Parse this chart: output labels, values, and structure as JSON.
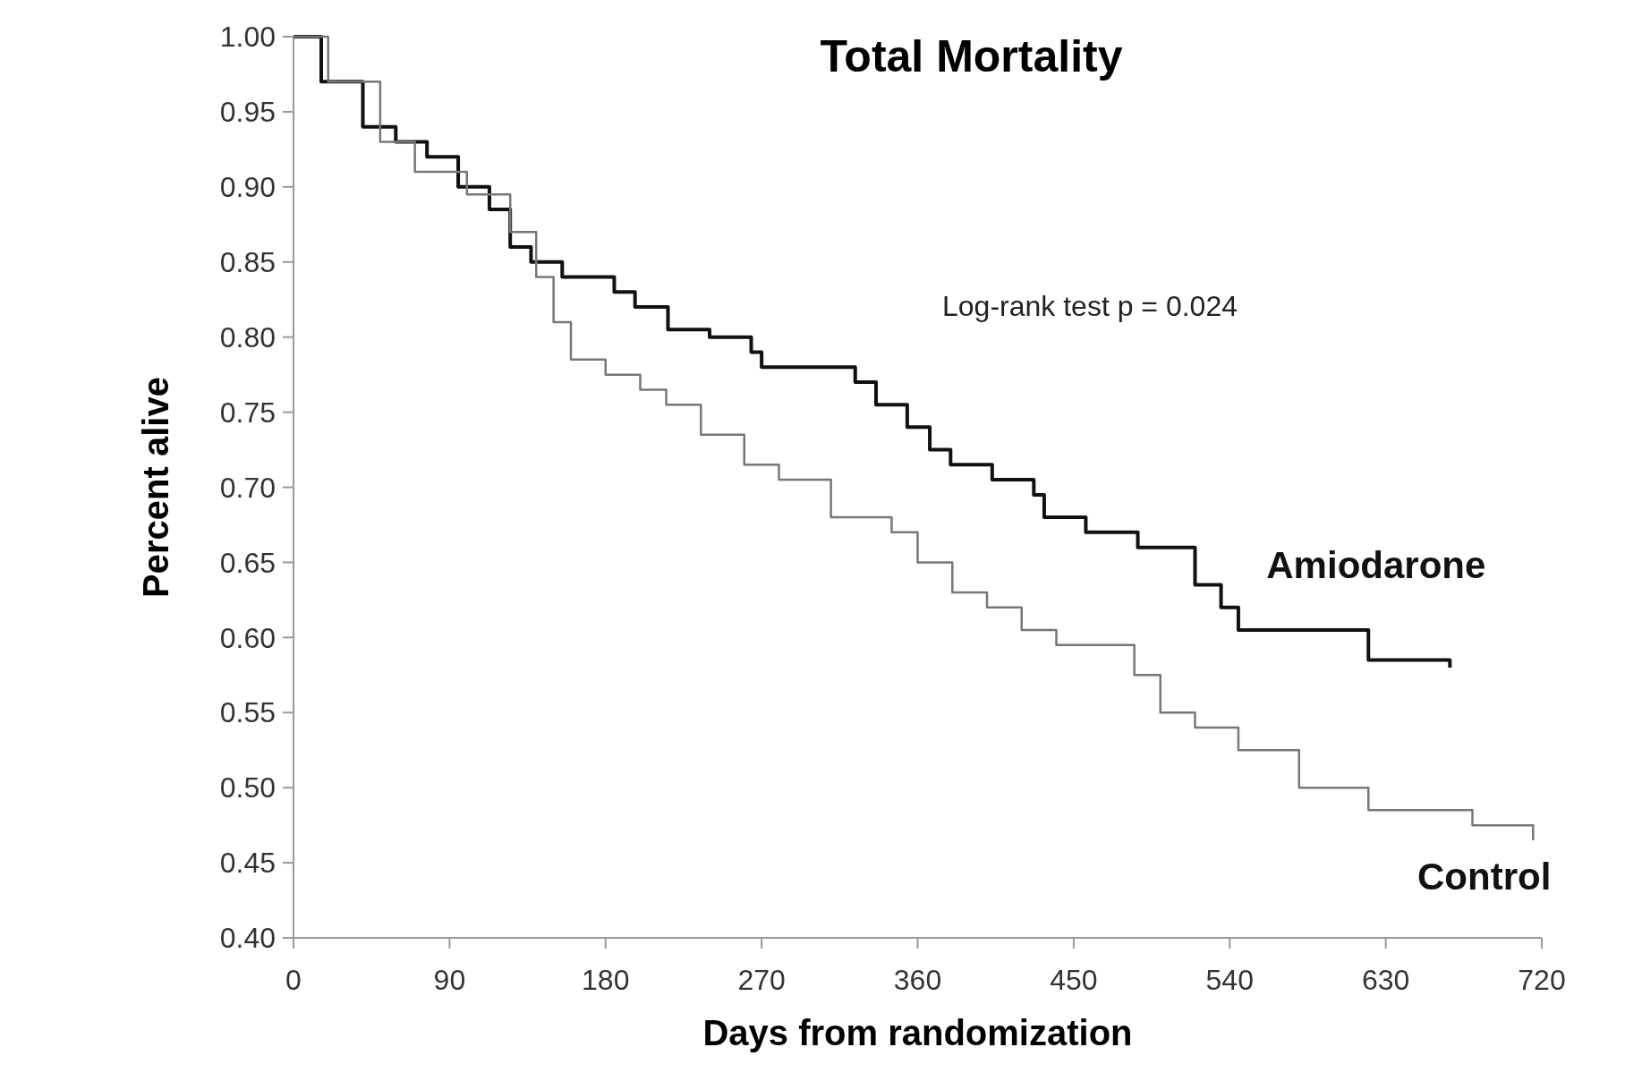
{
  "chart_data": {
    "type": "step",
    "title": "Total Mortality",
    "xlabel": "Days from randomization",
    "ylabel": "Percent alive",
    "xlim": [
      0,
      720
    ],
    "xticks": [
      0,
      90,
      180,
      270,
      360,
      450,
      540,
      630,
      720
    ],
    "ylim": [
      0.4,
      1.0
    ],
    "yticks": [
      {
        "value": 1.0,
        "label": "1.00"
      },
      {
        "value": 0.95,
        "label": "0.95"
      },
      {
        "value": 0.9,
        "label": "0.90"
      },
      {
        "value": 0.85,
        "label": "0.85"
      },
      {
        "value": 0.8,
        "label": "0.80"
      },
      {
        "value": 0.75,
        "label": "0.75"
      },
      {
        "value": 0.7,
        "label": "0.70"
      },
      {
        "value": 0.65,
        "label": "0.65"
      },
      {
        "value": 0.6,
        "label": "0.60"
      },
      {
        "value": 0.55,
        "label": "0.55"
      },
      {
        "value": 0.5,
        "label": "0.50"
      },
      {
        "value": 0.45,
        "label": "0.45"
      },
      {
        "value": 0.4,
        "label": "0.40"
      }
    ],
    "annotations": [
      "Log-rank test p = 0.024"
    ],
    "grid": false,
    "legend": false,
    "series": [
      {
        "name": "Amiodarone",
        "color": "#111111",
        "x": [
          0,
          16,
          40,
          59,
          77,
          95,
          113,
          125,
          137,
          155,
          185,
          197,
          216,
          240,
          264,
          270,
          324,
          336,
          354,
          367,
          379,
          403,
          427,
          433,
          457,
          487,
          520,
          535,
          545,
          620,
          667
        ],
        "values": [
          1.0,
          0.97,
          0.94,
          0.93,
          0.92,
          0.9,
          0.885,
          0.86,
          0.85,
          0.84,
          0.83,
          0.82,
          0.805,
          0.8,
          0.79,
          0.78,
          0.77,
          0.755,
          0.74,
          0.725,
          0.715,
          0.705,
          0.695,
          0.68,
          0.67,
          0.66,
          0.635,
          0.62,
          0.605,
          0.585,
          0.58
        ]
      },
      {
        "name": "Control",
        "color": "#777777",
        "x": [
          0,
          20,
          50,
          70,
          100,
          125,
          140,
          150,
          160,
          180,
          200,
          215,
          235,
          260,
          280,
          310,
          345,
          360,
          380,
          400,
          420,
          440,
          485,
          500,
          520,
          545,
          580,
          620,
          680,
          715
        ],
        "values": [
          1.0,
          0.97,
          0.93,
          0.91,
          0.895,
          0.87,
          0.84,
          0.81,
          0.785,
          0.775,
          0.765,
          0.755,
          0.735,
          0.715,
          0.705,
          0.68,
          0.67,
          0.65,
          0.63,
          0.62,
          0.605,
          0.595,
          0.575,
          0.55,
          0.54,
          0.525,
          0.5,
          0.485,
          0.475,
          0.465
        ]
      }
    ]
  }
}
